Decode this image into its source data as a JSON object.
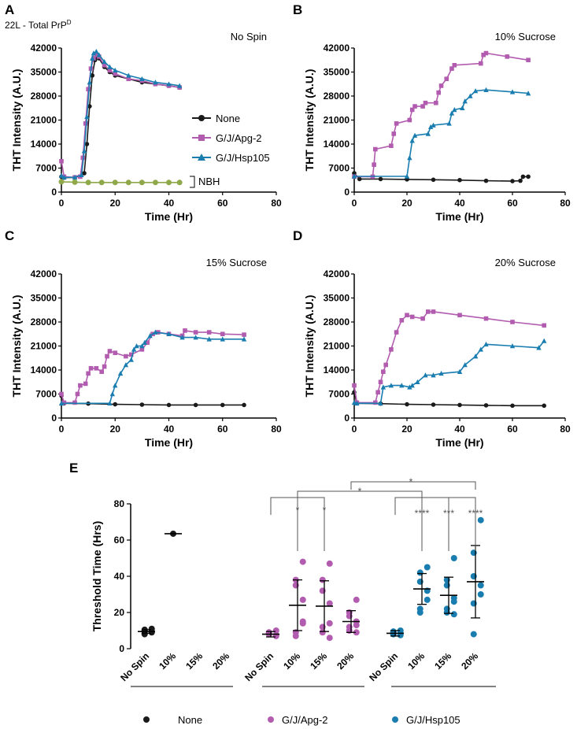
{
  "figure": {
    "panel_a_subtitle": "22L - Total PrP",
    "panel_a_subtitle_sup": "D",
    "legend_none": "None",
    "legend_apg2": "G/J/Apg-2",
    "legend_hsp105": "G/J/Hsp105",
    "nbh_label": "NBH",
    "bottom_legend_none": "None",
    "bottom_legend_apg2": "G/J/Apg-2",
    "bottom_legend_hsp105": "G/J/Hsp105"
  },
  "colors": {
    "none": "#1a1a1a",
    "apg2": "#b25cb0",
    "hsp105": "#1a7db0",
    "nbh": "#8fa84a"
  },
  "chart_data": [
    {
      "panel": "A",
      "type": "line",
      "title": "No Spin",
      "xlabel": "Time (Hr)",
      "ylabel": "THT Intensity (A.U.)",
      "xlim": [
        0,
        80
      ],
      "ylim": [
        0,
        42000
      ],
      "xticks": [
        0,
        20,
        40,
        60,
        80
      ],
      "yticks": [
        0,
        7000,
        14000,
        21000,
        28000,
        35000,
        42000
      ],
      "series": [
        {
          "name": "None",
          "key": "none",
          "marker": "circle",
          "x": [
            0,
            1,
            5,
            8.5,
            9.5,
            10.5,
            11.5,
            12.5,
            13,
            14,
            16,
            18,
            20,
            25,
            30,
            35,
            40,
            44
          ],
          "y": [
            4500,
            4200,
            4300,
            5500,
            14000,
            25000,
            34000,
            38500,
            39500,
            39000,
            36500,
            35000,
            34000,
            33000,
            32000,
            31500,
            31000,
            30500
          ]
        },
        {
          "name": "G/J/Apg-2",
          "key": "apg2",
          "marker": "square",
          "x": [
            0,
            1,
            5,
            7,
            8,
            9,
            10,
            11,
            12,
            13,
            14,
            16,
            18,
            20,
            25,
            30,
            35,
            40,
            44
          ],
          "y": [
            9000,
            4500,
            4300,
            4500,
            10000,
            20000,
            30000,
            36000,
            39000,
            40000,
            39500,
            37000,
            35500,
            34500,
            33000,
            32500,
            31500,
            31000,
            30500
          ]
        },
        {
          "name": "G/J/Hsp105",
          "key": "hsp105",
          "marker": "triangle",
          "x": [
            0,
            1,
            5,
            7.5,
            8.5,
            9.5,
            10.5,
            11.5,
            12,
            13,
            14,
            16,
            18,
            20,
            25,
            30,
            35,
            40,
            44
          ],
          "y": [
            4800,
            4300,
            4300,
            5000,
            12000,
            22000,
            32000,
            39000,
            40500,
            41000,
            40000,
            38000,
            36500,
            35500,
            34000,
            33000,
            32000,
            31500,
            31000
          ]
        },
        {
          "name": "NBH",
          "key": "nbh",
          "marker": "circle",
          "x": [
            0,
            5,
            10,
            15,
            20,
            25,
            30,
            35,
            40,
            44
          ],
          "y": [
            3000,
            2900,
            2800,
            2800,
            2800,
            2800,
            2800,
            2800,
            2800,
            2800
          ]
        }
      ]
    },
    {
      "panel": "B",
      "type": "line",
      "title": "10% Sucrose",
      "xlabel": "Time (Hr)",
      "ylabel": "THT Intensity (A.U.)",
      "xlim": [
        0,
        80
      ],
      "ylim": [
        0,
        42000
      ],
      "xticks": [
        0,
        20,
        40,
        60,
        80
      ],
      "yticks": [
        0,
        7000,
        14000,
        21000,
        28000,
        35000,
        42000
      ],
      "series": [
        {
          "name": "None",
          "key": "none",
          "marker": "circle",
          "x": [
            0,
            2,
            10,
            20,
            30,
            40,
            50,
            60,
            63,
            64,
            66
          ],
          "y": [
            5500,
            3800,
            3800,
            3700,
            3600,
            3500,
            3300,
            3200,
            3300,
            4500,
            4500
          ]
        },
        {
          "name": "G/J/Apg-2",
          "key": "apg2",
          "marker": "square",
          "x": [
            0,
            7,
            7.5,
            8,
            14,
            15,
            16,
            21,
            22,
            23,
            26,
            27,
            31,
            32,
            33,
            35,
            37,
            38,
            48,
            49,
            50,
            58,
            66
          ],
          "y": [
            4500,
            4500,
            8000,
            12500,
            13500,
            17000,
            20000,
            21000,
            24000,
            25000,
            25000,
            26000,
            26000,
            29000,
            31000,
            33000,
            36000,
            37000,
            37500,
            40000,
            40500,
            39500,
            38500
          ]
        },
        {
          "name": "G/J/Hsp105",
          "key": "hsp105",
          "marker": "triangle",
          "x": [
            0,
            20,
            21,
            22,
            23,
            28,
            29,
            30,
            36,
            37,
            38,
            41,
            42,
            44,
            46,
            50,
            60,
            66
          ],
          "y": [
            4600,
            4600,
            10000,
            15000,
            16500,
            17000,
            19000,
            19500,
            20000,
            23000,
            24000,
            24500,
            26500,
            28000,
            29500,
            29800,
            29200,
            28800
          ]
        }
      ]
    },
    {
      "panel": "C",
      "type": "line",
      "title": "15% Sucrose",
      "xlabel": "Time (Hr)",
      "ylabel": "THT Intensity (A.U.)",
      "xlim": [
        0,
        80
      ],
      "ylim": [
        0,
        42000
      ],
      "xticks": [
        0,
        20,
        40,
        60,
        80
      ],
      "yticks": [
        0,
        7000,
        14000,
        21000,
        28000,
        35000,
        42000
      ],
      "series": [
        {
          "name": "None",
          "key": "none",
          "marker": "circle",
          "x": [
            0,
            1,
            10,
            20,
            30,
            40,
            50,
            60,
            68
          ],
          "y": [
            6500,
            4300,
            4200,
            4000,
            3900,
            3800,
            3800,
            3800,
            3800
          ]
        },
        {
          "name": "G/J/Apg-2",
          "key": "apg2",
          "marker": "square",
          "x": [
            0,
            1,
            5,
            6,
            7,
            9,
            10,
            11,
            13,
            15,
            16,
            17,
            18,
            20,
            24,
            26,
            30,
            32,
            34,
            36,
            40,
            45,
            46,
            50,
            55,
            60,
            68
          ],
          "y": [
            7000,
            4500,
            4500,
            7000,
            9500,
            10000,
            13000,
            14500,
            14500,
            13500,
            15000,
            18000,
            19500,
            19000,
            18000,
            18500,
            20000,
            22000,
            24500,
            25000,
            24500,
            24000,
            25500,
            25000,
            25000,
            24500,
            24300
          ]
        },
        {
          "name": "G/J/Hsp105",
          "key": "hsp105",
          "marker": "triangle",
          "x": [
            0,
            18,
            19,
            20,
            22,
            24,
            26,
            27,
            28,
            30,
            31,
            33,
            35,
            40,
            45,
            50,
            55,
            60,
            68
          ],
          "y": [
            4300,
            4300,
            7000,
            9500,
            13000,
            15500,
            17000,
            20000,
            21000,
            21000,
            22000,
            24000,
            25000,
            24500,
            23500,
            23500,
            23000,
            23000,
            23000
          ]
        }
      ]
    },
    {
      "panel": "D",
      "type": "line",
      "title": "20% Sucrose",
      "xlabel": "Time (Hr)",
      "ylabel": "THT Intensity (A.U.)",
      "xlim": [
        0,
        80
      ],
      "ylim": [
        0,
        42000
      ],
      "xticks": [
        0,
        20,
        40,
        60,
        80
      ],
      "yticks": [
        0,
        7000,
        14000,
        21000,
        28000,
        35000,
        42000
      ],
      "series": [
        {
          "name": "None",
          "key": "none",
          "marker": "circle",
          "x": [
            0,
            1,
            10,
            20,
            30,
            40,
            50,
            60,
            72
          ],
          "y": [
            7500,
            4300,
            4200,
            4000,
            3900,
            3800,
            3700,
            3600,
            3600
          ]
        },
        {
          "name": "G/J/Apg-2",
          "key": "apg2",
          "marker": "square",
          "x": [
            0,
            1,
            8,
            9,
            10,
            11,
            12,
            14,
            16,
            18,
            20,
            22,
            26,
            28,
            30,
            40,
            50,
            60,
            72
          ],
          "y": [
            9500,
            4500,
            4500,
            7500,
            10500,
            13500,
            15500,
            20000,
            25000,
            28500,
            30000,
            29500,
            29000,
            31000,
            31000,
            30000,
            29000,
            28000,
            27000
          ]
        },
        {
          "name": "G/J/Hsp105",
          "key": "hsp105",
          "marker": "triangle",
          "x": [
            0,
            1,
            10,
            11,
            14,
            18,
            21,
            22,
            24,
            27,
            30,
            33,
            40,
            42,
            46,
            48,
            50,
            60,
            70,
            72
          ],
          "y": [
            4500,
            4300,
            4300,
            9000,
            9500,
            9500,
            9000,
            9500,
            10500,
            12500,
            12500,
            13000,
            13500,
            15500,
            18000,
            20000,
            21500,
            21000,
            20500,
            22500
          ]
        }
      ]
    },
    {
      "panel": "E",
      "type": "scatter",
      "title": "",
      "xlabel": "",
      "ylabel": "Threshold Time (Hrs)",
      "ylim": [
        0,
        80
      ],
      "yticks": [
        0,
        20,
        40,
        60,
        80
      ],
      "categories": [
        "No Spin",
        "10%",
        "15%",
        "20%",
        "No Spin",
        "10%",
        "15%",
        "20%",
        "No Spin",
        "10%",
        "15%",
        "20%"
      ],
      "groups": [
        {
          "name": "None",
          "key": "none",
          "points": [
            [
              9,
              8.5,
              10,
              11,
              9.5,
              10.5,
              8,
              9.5
            ],
            [
              63.5
            ],
            [],
            []
          ],
          "mean": [
            9.5,
            63.5,
            null,
            null
          ],
          "sd": [
            1,
            0,
            null,
            null
          ]
        },
        {
          "name": "G/J/Apg-2",
          "key": "apg2",
          "points": [
            [
              7,
              9,
              8,
              10,
              7.5,
              8.5,
              9
            ],
            [
              48,
              38,
              35,
              27,
              14,
              9,
              7,
              15
            ],
            [
              47,
              38,
              32,
              25,
              14,
              12,
              9,
              6
            ],
            [
              27,
              20,
              18,
              15,
              13,
              12,
              10,
              9
            ]
          ],
          "mean": [
            8,
            24,
            23.5,
            15
          ],
          "sd": [
            1.5,
            14,
            14,
            6
          ]
        },
        {
          "name": "G/J/Hsp105",
          "key": "hsp105",
          "points": [
            [
              10,
              8,
              9,
              8.5,
              7.5,
              9.5,
              8
            ],
            [
              45,
              42,
              37,
              32,
              27,
              22,
              20
            ],
            [
              50,
              38,
              35,
              28,
              26,
              22,
              20,
              19
            ],
            [
              71,
              53,
              40,
              35,
              30,
              25,
              8
            ]
          ],
          "mean": [
            8.5,
            33,
            29.5,
            37
          ],
          "sd": [
            1.5,
            8.5,
            10,
            20
          ]
        }
      ],
      "significance": [
        {
          "label": "*",
          "note": "Apg-2 No Spin vs 10%"
        },
        {
          "label": "*",
          "note": "Apg-2 No Spin vs 15%"
        },
        {
          "label": "*",
          "note": "Apg-2 vs Hsp105 (10%)"
        },
        {
          "label": "*",
          "note": "Apg-2 vs Hsp105 (20%)"
        },
        {
          "label": "****",
          "note": "Hsp105 No Spin vs 10%"
        },
        {
          "label": "***",
          "note": "Hsp105 No Spin vs 15%"
        },
        {
          "label": "****",
          "note": "Hsp105 No Spin vs 20%"
        }
      ]
    }
  ]
}
